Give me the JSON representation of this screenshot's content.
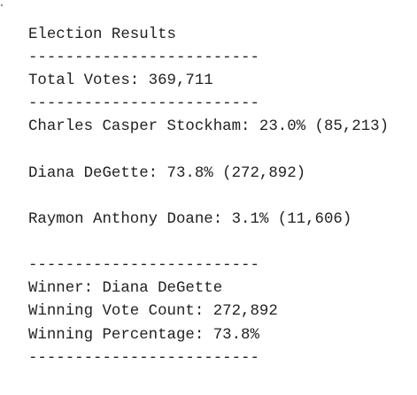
{
  "document": {
    "lines": [
      "Election Results",
      "-------------------------",
      "Total Votes: 369,711",
      "-------------------------",
      "Charles Casper Stockham: 23.0% (85,213)",
      "Diana DeGette: 73.8% (272,892)",
      "Raymon Anthony Doane: 3.1% (11,606)",
      "-------------------------",
      "Winner: Diana DeGette",
      "Winning Vote Count: 272,892",
      "Winning Percentage: 73.8%",
      "-------------------------"
    ]
  }
}
